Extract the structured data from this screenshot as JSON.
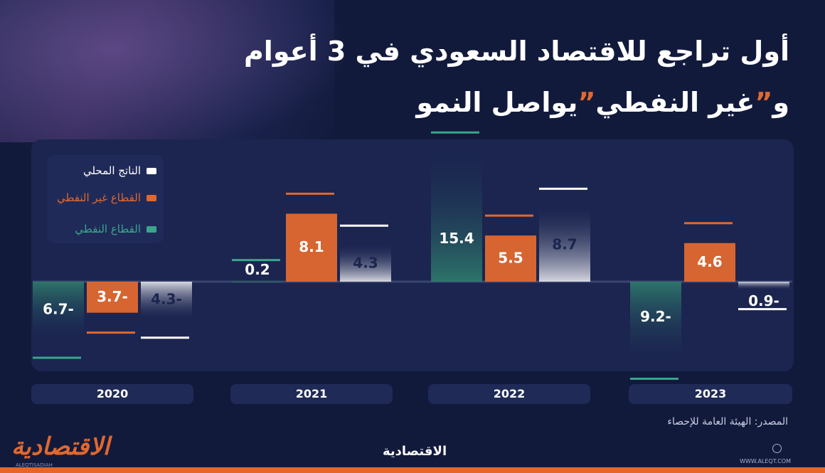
{
  "title": {
    "line1": "أول تراجع للاقتصاد السعودي في 3 أعوام",
    "line2_prefix": "و",
    "quote_open": "”",
    "line2_highlight": "غير النفطي",
    "quote_close": "”",
    "line2_suffix": "يواصل النمو"
  },
  "colors": {
    "gdp": "#ffffff",
    "non_oil": "#e0682f",
    "oil": "#3aa58c",
    "background": "#121a3c",
    "panel": "#1b2550",
    "accent": "#e0682f"
  },
  "chart_data": {
    "type": "bar",
    "categories": [
      "2020",
      "2021",
      "2022",
      "2023"
    ],
    "series": [
      {
        "name": "القطاع النفطي",
        "key": "oil",
        "values": [
          -6.7,
          0.2,
          15.4,
          -9.2
        ],
        "labels": [
          "6.7-",
          "0.2",
          "15.4",
          "9.2-"
        ]
      },
      {
        "name": "القطاع غير النفطي",
        "key": "non_oil",
        "values": [
          -3.7,
          8.1,
          5.5,
          4.6
        ],
        "labels": [
          "3.7-",
          "8.1",
          "5.5",
          "4.6"
        ]
      },
      {
        "name": "الناتج المحلي",
        "key": "gdp",
        "values": [
          -4.3,
          4.3,
          8.7,
          -0.9
        ],
        "labels": [
          "4.3-",
          "4.3",
          "8.7",
          "0.9-"
        ]
      }
    ],
    "legend_position": "top-left",
    "grid": false
  },
  "legend": {
    "items": [
      {
        "label": "الناتج المحلي",
        "key": "gdp"
      },
      {
        "label": "القطاع غير النفطي",
        "key": "non_oil"
      },
      {
        "label": "القطاع النفطي",
        "key": "oil"
      }
    ]
  },
  "source": "المصدر: الهيئة العامة للإحصاء",
  "branding": {
    "logo": "الاقتصادية",
    "logo_sub": "ALEQTISADIAH",
    "center_logo": "الاقتصادية",
    "website": "WWW.ALEQT.COM",
    "globe_icon": "globe-icon"
  }
}
